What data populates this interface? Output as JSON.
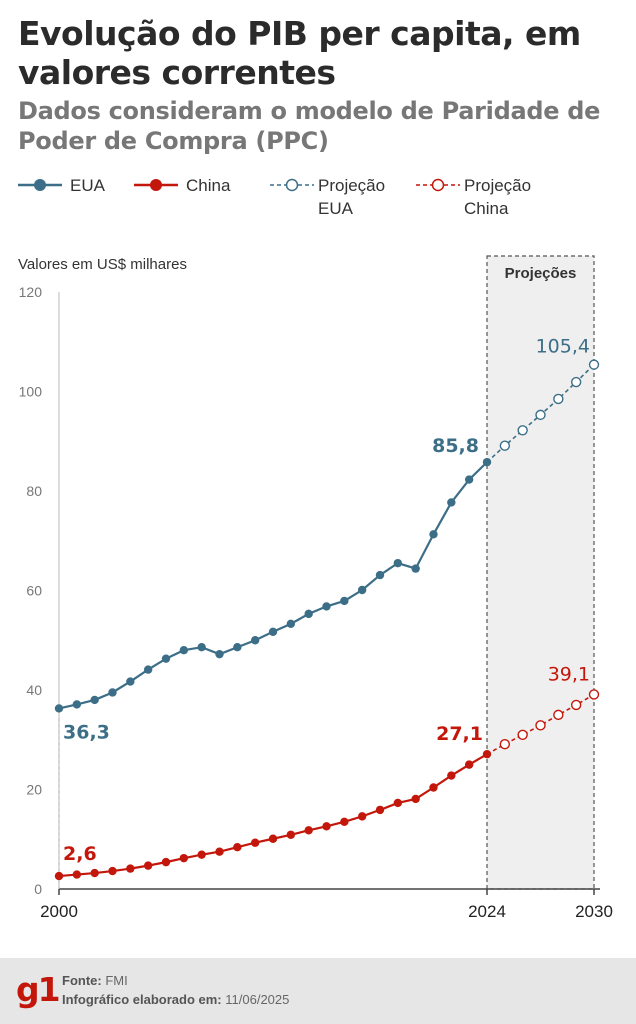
{
  "header": {
    "title": "Evolução do PIB per capita, em valores correntes",
    "subtitle": "Dados consideram o modelo de Paridade de Poder de Compra (PPC)"
  },
  "legend": [
    {
      "label": "EUA",
      "color": "#3c6e87",
      "style": "solid"
    },
    {
      "label": "China",
      "color": "#c4170c",
      "style": "solid"
    },
    {
      "label": "Projeção\nEUA",
      "color": "#3c6e87",
      "style": "dashed-hollow"
    },
    {
      "label": "Projeção\nChina",
      "color": "#c4170c",
      "style": "dashed-hollow"
    }
  ],
  "footer": {
    "logo": "g1",
    "source_label": "Fonte:",
    "source_value": "FMI",
    "made_label": "Infográfico elaborado em:",
    "made_value": "11/06/2025"
  },
  "chart_data": {
    "type": "line",
    "ylabel": "Valores em US$ milhares",
    "ylim": [
      0,
      120
    ],
    "yticks": [
      0,
      20,
      40,
      60,
      80,
      100,
      120
    ],
    "xlim": [
      2000,
      2030
    ],
    "xtick_labels": [
      "2000",
      "2024",
      "2030"
    ],
    "projection_region": {
      "label": "Projeções",
      "from": 2024,
      "to": 2030
    },
    "colors": {
      "usa": "#3c6e87",
      "china": "#c4170c"
    },
    "series": [
      {
        "name": "EUA",
        "x": [
          2000,
          2001,
          2002,
          2003,
          2004,
          2005,
          2006,
          2007,
          2008,
          2009,
          2010,
          2011,
          2012,
          2013,
          2014,
          2015,
          2016,
          2017,
          2018,
          2019,
          2020,
          2021,
          2022,
          2023,
          2024
        ],
        "values": [
          36.3,
          37.1,
          38.0,
          39.5,
          41.7,
          44.1,
          46.3,
          48.0,
          48.6,
          47.2,
          48.6,
          50.0,
          51.7,
          53.3,
          55.3,
          56.8,
          57.9,
          60.1,
          63.1,
          65.5,
          64.4,
          71.3,
          77.7,
          82.3,
          85.8
        ],
        "annotations": [
          {
            "x": 2000,
            "text": "36,3"
          },
          {
            "x": 2024,
            "text": "85,8"
          }
        ]
      },
      {
        "name": "China",
        "x": [
          2000,
          2001,
          2002,
          2003,
          2004,
          2005,
          2006,
          2007,
          2008,
          2009,
          2010,
          2011,
          2012,
          2013,
          2014,
          2015,
          2016,
          2017,
          2018,
          2019,
          2020,
          2021,
          2022,
          2023,
          2024
        ],
        "values": [
          2.6,
          2.9,
          3.2,
          3.6,
          4.1,
          4.7,
          5.4,
          6.2,
          6.9,
          7.5,
          8.4,
          9.3,
          10.1,
          10.9,
          11.8,
          12.6,
          13.5,
          14.6,
          15.9,
          17.3,
          18.1,
          20.4,
          22.8,
          25.0,
          27.1
        ],
        "annotations": [
          {
            "x": 2000,
            "text": "2,6"
          },
          {
            "x": 2024,
            "text": "27,1"
          }
        ]
      },
      {
        "name": "Projeção EUA",
        "x": [
          2024,
          2025,
          2026,
          2027,
          2028,
          2029,
          2030
        ],
        "values": [
          85.8,
          89.1,
          92.2,
          95.3,
          98.5,
          101.9,
          105.4
        ],
        "annotations": [
          {
            "x": 2030,
            "text": "105,4"
          }
        ]
      },
      {
        "name": "Projeção China",
        "x": [
          2024,
          2025,
          2026,
          2027,
          2028,
          2029,
          2030
        ],
        "values": [
          27.1,
          29.1,
          31.0,
          32.9,
          35.0,
          37.0,
          39.1
        ],
        "annotations": [
          {
            "x": 2030,
            "text": "39,1"
          }
        ]
      }
    ]
  }
}
